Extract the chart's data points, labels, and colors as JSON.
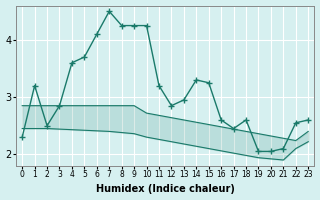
{
  "xlabel": "Humidex (Indice chaleur)",
  "ylabel": "",
  "background_color": "#d6f0f0",
  "grid_color": "#ffffff",
  "line_color": "#1a7a6a",
  "x_labels": [
    "0",
    "1",
    "2",
    "3",
    "4",
    "5",
    "6",
    "7",
    "8",
    "9",
    "10",
    "11",
    "12",
    "13",
    "14",
    "15",
    "16",
    "17",
    "18",
    "19",
    "20",
    "21",
    "22",
    "23"
  ],
  "xlim": [
    0,
    23
  ],
  "ylim": [
    1.8,
    4.6
  ],
  "yticks": [
    2,
    3,
    4
  ],
  "main_line": [
    2.3,
    3.2,
    2.5,
    2.85,
    3.6,
    3.7,
    4.1,
    4.5,
    4.25,
    4.25,
    4.25,
    3.2,
    2.85,
    2.95,
    3.3,
    3.25,
    2.6,
    2.45,
    2.6,
    2.05,
    2.05,
    2.1,
    2.55,
    2.6
  ],
  "upper_line": [
    2.85,
    2.85,
    2.85,
    2.85,
    2.85,
    2.85,
    2.85,
    2.85,
    2.85,
    2.85,
    2.72,
    2.68,
    2.64,
    2.6,
    2.56,
    2.52,
    2.48,
    2.44,
    2.4,
    2.36,
    2.32,
    2.28,
    2.24,
    2.4
  ],
  "lower_line": [
    2.45,
    2.45,
    2.45,
    2.44,
    2.43,
    2.42,
    2.41,
    2.4,
    2.38,
    2.36,
    2.3,
    2.26,
    2.22,
    2.18,
    2.14,
    2.1,
    2.06,
    2.02,
    1.98,
    1.94,
    1.92,
    1.9,
    2.1,
    2.22
  ]
}
